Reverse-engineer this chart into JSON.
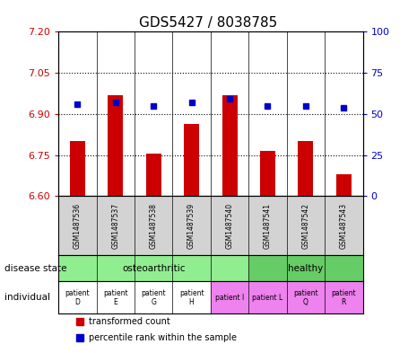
{
  "title": "GDS5427 / 8038785",
  "samples": [
    "GSM1487536",
    "GSM1487537",
    "GSM1487538",
    "GSM1487539",
    "GSM1487540",
    "GSM1487541",
    "GSM1487542",
    "GSM1487543"
  ],
  "red_values": [
    6.8,
    6.97,
    6.755,
    6.865,
    6.97,
    6.765,
    6.8,
    6.68
  ],
  "blue_values": [
    56,
    57,
    55,
    57,
    59,
    55,
    55,
    54
  ],
  "ylim_left": [
    6.6,
    7.2
  ],
  "ylim_right": [
    0,
    100
  ],
  "yticks_left": [
    6.6,
    6.75,
    6.9,
    7.05,
    7.2
  ],
  "yticks_right": [
    0,
    25,
    50,
    75,
    100
  ],
  "hlines": [
    6.75,
    6.9,
    7.05
  ],
  "disease_state": {
    "osteoarthritic": [
      0,
      4
    ],
    "healthy": [
      5,
      7
    ]
  },
  "disease_color_osteo": "#90ee90",
  "disease_color_healthy": "#66cc66",
  "individual_labels": [
    "patient\nD",
    "patient\nE",
    "patient\nG",
    "patient\nH",
    "patient I",
    "patient L",
    "patient\nQ",
    "patient\nR"
  ],
  "individual_colors": [
    "#ffffff",
    "#ffffff",
    "#ffffff",
    "#ffffff",
    "#ee82ee",
    "#ee82ee",
    "#ee82ee",
    "#ee82ee"
  ],
  "sample_bg_color": "#d3d3d3",
  "bar_color": "#cc0000",
  "dot_color": "#0000cc",
  "legend_items": [
    {
      "label": "transformed count",
      "color": "#cc0000",
      "marker": "s"
    },
    {
      "label": "percentile rank within the sample",
      "color": "#0000cc",
      "marker": "s"
    }
  ],
  "left_label_color": "#cc0000",
  "right_label_color": "#0000cc"
}
